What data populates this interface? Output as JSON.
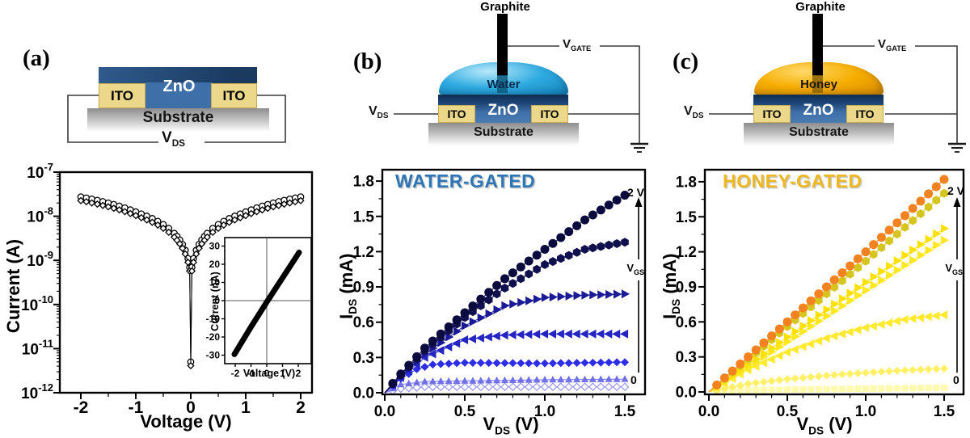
{
  "figure": {
    "panel_a": {
      "label": "(a)",
      "schematic": {
        "zno": "ZnO",
        "ito_left": "ITO",
        "ito_right": "ITO",
        "substrate": "Substrate",
        "vds_v": "V",
        "vds_sub": "DS"
      }
    },
    "panel_b": {
      "label": "(b)",
      "title": "WATER-GATED",
      "title_color": "#2E75B6",
      "schematic": {
        "graphite": "Graphite",
        "liquid": "Water",
        "zno": "ZnO",
        "ito_left": "ITO",
        "ito_right": "ITO",
        "substrate": "Substrate",
        "vds_v": "V",
        "vds_sub": "DS",
        "vgate_v": "V",
        "vgate_sub": "GATE"
      }
    },
    "panel_c": {
      "label": "(c)",
      "title": "HONEY-GATED",
      "title_color": "#EFB820",
      "schematic": {
        "graphite": "Graphite",
        "liquid": "Honey",
        "zno": "ZnO",
        "ito_left": "ITO",
        "ito_right": "ITO",
        "substrate": "Substrate",
        "vds_v": "V",
        "vds_sub": "DS",
        "vgate_v": "V",
        "vgate_sub": "GATE"
      }
    }
  },
  "colors": {
    "zno": "#3F6FA9",
    "zno_dark": "#14365C",
    "ito": "#ECD88A",
    "ito_border": "#C9AB4F",
    "substrate_top": "#8D8D8D",
    "water": "#2FABE1",
    "water_light": "#B8E9FA",
    "honey": "#F6AD00",
    "honey_light": "#FFD96B",
    "wire": "#3A3A3A",
    "graphite": "#000000"
  },
  "chart_data": [
    {
      "id": "a_main",
      "type": "scatter",
      "xscale": "linear",
      "yscale": "log",
      "xlabel": "Voltage (V)",
      "ylabel": "Current (A)",
      "xlim": [
        -2.4,
        2.2
      ],
      "ylim": [
        1e-12,
        1e-07
      ],
      "xticks": [
        -2,
        -1,
        0,
        1,
        2
      ],
      "xtick_labels": [
        "-2",
        "-1",
        "0",
        "1",
        "2"
      ],
      "ytick_exponents": [
        -7,
        -8,
        -9,
        -10,
        -11,
        -12
      ],
      "symmetric": true,
      "abs_v": [
        0,
        0.02,
        0.05,
        0.1,
        0.15,
        0.2,
        0.25,
        0.3,
        0.4,
        0.5,
        0.6,
        0.7,
        0.8,
        0.9,
        1.0,
        1.1,
        1.2,
        1.3,
        1.4,
        1.5,
        1.6,
        1.7,
        1.8,
        1.9,
        2.0
      ],
      "current": [
        5e-12,
        7e-10,
        1.1e-09,
        1.7e-09,
        2.3e-09,
        2.9e-09,
        3.5e-09,
        4.1e-09,
        5.3e-09,
        6.5e-09,
        7.7e-09,
        8.9e-09,
        1.01e-08,
        1.13e-08,
        1.26e-08,
        1.4e-08,
        1.55e-08,
        1.7e-08,
        1.85e-08,
        2e-08,
        2.15e-08,
        2.3e-08,
        2.45e-08,
        2.6e-08,
        2.75e-08
      ],
      "series": [
        {
          "name": "sweep-circles",
          "marker": "circle",
          "scale": 1.0,
          "color": "#000000",
          "open": true
        },
        {
          "name": "sweep-diamonds",
          "marker": "diamond",
          "scale": 0.82,
          "color": "#000000",
          "open": true
        }
      ]
    },
    {
      "id": "a_inset",
      "type": "line",
      "xlabel": "Voltage (V)",
      "ylabel": "Current (nA)",
      "xlim": [
        -2.7,
        2.8
      ],
      "ylim": [
        -35,
        35
      ],
      "xticks": [
        -2,
        -1,
        0,
        1,
        2
      ],
      "xtick_labels": [
        "-2",
        "-1",
        "0",
        "1",
        "2"
      ],
      "yticks": [
        30,
        20,
        10,
        0,
        -10,
        -20,
        -30
      ],
      "ytick_labels": [
        "30",
        "20",
        "10",
        "0",
        "-10",
        "-20",
        "-30"
      ],
      "line": {
        "points": [
          [
            -2.05,
            -29.5
          ],
          [
            -1,
            -14.5
          ],
          [
            0,
            -0.8
          ],
          [
            1,
            12.5
          ],
          [
            2.05,
            26.5
          ]
        ],
        "width": 7,
        "color": "#000000"
      }
    },
    {
      "id": "water",
      "type": "scatter",
      "title": "WATER-GATED",
      "xlabel_main": "V",
      "xlabel_sub": "DS",
      "xlabel_unit": " (V)",
      "ylabel_main": "I",
      "ylabel_sub": "DS",
      "ylabel_unit": " (mA)",
      "xlim": [
        0,
        1.63
      ],
      "ylim": [
        0,
        1.9
      ],
      "xticks": [
        0,
        0.5,
        1,
        1.5
      ],
      "xtick_labels": [
        "0.0",
        "0.5",
        "1.0",
        "1.5"
      ],
      "yticks": [
        0,
        0.3,
        0.6,
        0.9,
        1.2,
        1.5,
        1.8
      ],
      "ytick_labels": [
        "0.0",
        "0.3",
        "0.6",
        "0.9",
        "1.2",
        "1.5",
        "1.8"
      ],
      "marker_step": 0.05,
      "annotations": {
        "top": "2 V",
        "bottom": "0",
        "gate_main": "V",
        "gate_sub": "GS"
      },
      "series": [
        {
          "name": "vgs-2V",
          "marker": "circle",
          "color": "#0A0A3E",
          "size": 11,
          "anchors": [
            [
              0,
              0
            ],
            [
              0.1,
              0.16
            ],
            [
              0.25,
              0.38
            ],
            [
              0.5,
              0.68
            ],
            [
              0.75,
              0.97
            ],
            [
              1.0,
              1.22
            ],
            [
              1.25,
              1.47
            ],
            [
              1.5,
              1.68
            ]
          ]
        },
        {
          "name": "vgs-step5",
          "marker": "hexagon",
          "color": "#10104E",
          "size": 11,
          "anchors": [
            [
              0,
              0
            ],
            [
              0.1,
              0.15
            ],
            [
              0.25,
              0.36
            ],
            [
              0.5,
              0.64
            ],
            [
              0.75,
              0.89
            ],
            [
              1.0,
              1.09
            ],
            [
              1.25,
              1.22
            ],
            [
              1.5,
              1.28
            ]
          ]
        },
        {
          "name": "vgs-step4",
          "marker": "tri-r",
          "color": "#1A1A96",
          "size": 11,
          "anchors": [
            [
              0,
              0
            ],
            [
              0.1,
              0.14
            ],
            [
              0.25,
              0.33
            ],
            [
              0.5,
              0.57
            ],
            [
              0.75,
              0.74
            ],
            [
              1.0,
              0.81
            ],
            [
              1.25,
              0.83
            ],
            [
              1.5,
              0.84
            ]
          ]
        },
        {
          "name": "vgs-step3",
          "marker": "tri-l",
          "color": "#2424C2",
          "size": 11,
          "anchors": [
            [
              0,
              0
            ],
            [
              0.1,
              0.13
            ],
            [
              0.25,
              0.3
            ],
            [
              0.5,
              0.45
            ],
            [
              0.75,
              0.49
            ],
            [
              1.0,
              0.5
            ],
            [
              1.5,
              0.5
            ]
          ]
        },
        {
          "name": "vgs-step2",
          "marker": "diamond",
          "color": "#2D2DE6",
          "size": 10,
          "anchors": [
            [
              0,
              0
            ],
            [
              0.1,
              0.12
            ],
            [
              0.2,
              0.2
            ],
            [
              0.3,
              0.24
            ],
            [
              0.5,
              0.255
            ],
            [
              1.0,
              0.25
            ],
            [
              1.5,
              0.26
            ]
          ]
        },
        {
          "name": "vgs-step1",
          "marker": "tri-u",
          "color": "#7070E8",
          "size": 9,
          "anchors": [
            [
              0,
              0
            ],
            [
              0.1,
              0.07
            ],
            [
              0.25,
              0.095
            ],
            [
              0.5,
              0.1
            ],
            [
              1.0,
              0.11
            ],
            [
              1.5,
              0.115
            ]
          ]
        },
        {
          "name": "vgs-0V",
          "marker": "diamond",
          "color": "#FFFFFF",
          "stroke": "#9898F0",
          "size": 9,
          "anchors": [
            [
              0,
              0
            ],
            [
              0.1,
              0.035
            ],
            [
              0.25,
              0.05
            ],
            [
              0.5,
              0.05
            ],
            [
              1.0,
              0.05
            ],
            [
              1.5,
              0.05
            ]
          ]
        }
      ]
    },
    {
      "id": "honey",
      "type": "scatter",
      "title": "HONEY-GATED",
      "xlabel_main": "V",
      "xlabel_sub": "DS",
      "xlabel_unit": " (V)",
      "ylabel_main": "I",
      "ylabel_sub": "DS",
      "ylabel_unit": " (mA)",
      "xlim": [
        0,
        1.63
      ],
      "ylim": [
        0,
        1.9
      ],
      "xticks": [
        0,
        0.5,
        1,
        1.5
      ],
      "xtick_labels": [
        "0.0",
        "0.5",
        "1.0",
        "1.5"
      ],
      "yticks": [
        0,
        0.3,
        0.6,
        0.9,
        1.2,
        1.5,
        1.8
      ],
      "ytick_labels": [
        "0.0",
        "0.3",
        "0.6",
        "0.9",
        "1.2",
        "1.5",
        "1.8"
      ],
      "marker_step": 0.05,
      "annotations": {
        "top": "2 V",
        "bottom": "0",
        "gate_main": "V",
        "gate_sub": "GS"
      },
      "series": [
        {
          "name": "vgs-2V",
          "marker": "circle",
          "color": "#F58220",
          "size": 11,
          "anchors": [
            [
              0,
              0
            ],
            [
              0.5,
              0.6
            ],
            [
              1.0,
              1.2
            ],
            [
              1.5,
              1.82
            ]
          ]
        },
        {
          "name": "vgs-step5",
          "marker": "hexagon",
          "color": "#D6C51F",
          "size": 11,
          "anchors": [
            [
              0,
              0
            ],
            [
              0.5,
              0.56
            ],
            [
              1.0,
              1.12
            ],
            [
              1.5,
              1.7
            ]
          ]
        },
        {
          "name": "vgs-step4",
          "marker": "tri-r",
          "color": "#FFE100",
          "size": 11,
          "anchors": [
            [
              0,
              0
            ],
            [
              0.5,
              0.47
            ],
            [
              1.0,
              0.94
            ],
            [
              1.5,
              1.4
            ]
          ]
        },
        {
          "name": "vgs-step4b",
          "marker": "tri-r",
          "color": "#FFE81F",
          "size": 11,
          "anchors": [
            [
              0,
              0
            ],
            [
              0.5,
              0.43
            ],
            [
              1.0,
              0.87
            ],
            [
              1.5,
              1.3
            ]
          ]
        },
        {
          "name": "vgs-step3",
          "marker": "tri-l",
          "color": "#FFEA2E",
          "size": 11,
          "anchors": [
            [
              0,
              0
            ],
            [
              0.25,
              0.19
            ],
            [
              0.5,
              0.34
            ],
            [
              0.75,
              0.46
            ],
            [
              1.0,
              0.55
            ],
            [
              1.25,
              0.62
            ],
            [
              1.5,
              0.66
            ]
          ]
        },
        {
          "name": "vgs-step2",
          "marker": "diamond",
          "color": "#FFF066",
          "size": 10,
          "anchors": [
            [
              0,
              0
            ],
            [
              0.25,
              0.07
            ],
            [
              0.5,
              0.11
            ],
            [
              0.75,
              0.14
            ],
            [
              1.0,
              0.165
            ],
            [
              1.25,
              0.185
            ],
            [
              1.5,
              0.2
            ]
          ]
        },
        {
          "name": "vgs-0V",
          "marker": "square",
          "color": "#FFFAAE",
          "size": 8,
          "anchors": [
            [
              0,
              0.01
            ],
            [
              0.5,
              0.02
            ],
            [
              1.0,
              0.028
            ],
            [
              1.5,
              0.035
            ]
          ]
        }
      ]
    }
  ]
}
